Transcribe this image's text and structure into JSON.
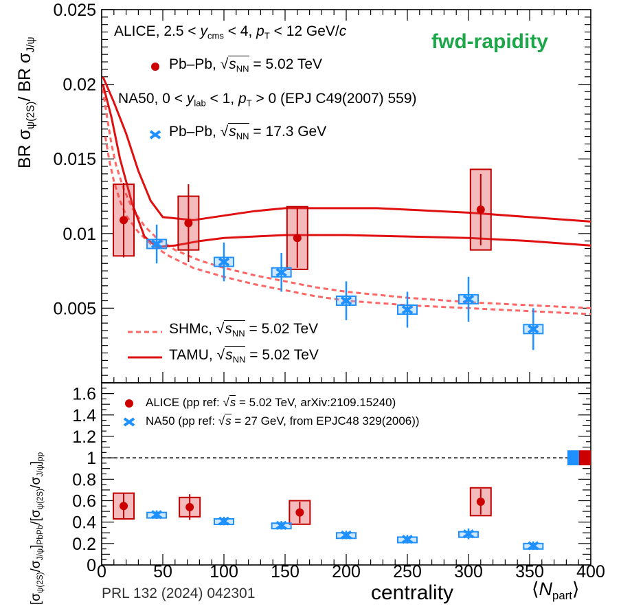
{
  "figure": {
    "fwd_label": "fwd-rapidity",
    "citation": "PRL 132 (2024) 042301",
    "centrality_label": "centrality"
  },
  "top_panel": {
    "ylabel_parts": [
      "BR σ",
      "ψ(2S)",
      "/ BR σ",
      "J/ψ"
    ],
    "ticks": [
      "0.025",
      "0.02",
      "0.015",
      "0.01",
      "0.005"
    ],
    "legend": {
      "alice_header": [
        "ALICE, 2.5 < ",
        "y",
        "cms",
        " < 4, ",
        "p",
        "T",
        " < 12 GeV/",
        "c"
      ],
      "alice_entry": [
        "Pb–Pb, ",
        "√",
        "s",
        "NN",
        " = 5.02 TeV"
      ],
      "na50_header": [
        "NA50, 0 < ",
        "y",
        "lab",
        " < 1, ",
        "p",
        "T",
        " > 0 (EPJ C49(2007) 559)"
      ],
      "na50_entry": [
        "Pb–Pb, ",
        "√",
        "s",
        "NN",
        " = 17.3 GeV"
      ],
      "shmc_entry": [
        "SHMc, ",
        "√",
        "s",
        "NN",
        " = 5.02 TeV"
      ],
      "tamu_entry": [
        "TAMU, ",
        "√",
        "s",
        "NN",
        " = 5.02 TeV"
      ]
    }
  },
  "bottom_panel": {
    "ylabel_parts": [
      "[σ",
      "ψ(2S)",
      "/σ",
      "J/ψ",
      "]",
      "PbPb",
      "/[σ",
      "ψ(2S)",
      "/σ",
      "J/ψ",
      "]",
      "pp"
    ],
    "ticks": [
      "1.6",
      "1.4",
      "1.2",
      "1",
      "0.8",
      "0.6",
      "0.4",
      "0.2",
      "0"
    ],
    "legend": {
      "alice_entry": [
        "ALICE (pp ref: ",
        "√",
        "s",
        " = 5.02 TeV, arXiv:2109.15240)"
      ],
      "na50_entry": [
        "NA50 (pp ref: ",
        "√",
        "s",
        " = 27 GeV, from EPJC48 329(2006))"
      ]
    }
  },
  "x_axis": {
    "ticks": [
      "0",
      "50",
      "100",
      "150",
      "200",
      "250",
      "300",
      "350",
      "400"
    ],
    "label_parts": [
      "⟨",
      "N",
      "part",
      "⟩"
    ]
  },
  "chart_data": [
    {
      "type": "scatter",
      "panel": "top",
      "xlim": [
        0,
        400
      ],
      "ylim": [
        0,
        0.025
      ],
      "series": [
        {
          "name": "Pb–Pb, √sNN = 5.02 TeV",
          "color": "#cc0000",
          "marker": "circle",
          "points": [
            {
              "x": 18,
              "y": 0.0109,
              "stat_err": 0.0025,
              "syst_box": 0.0024
            },
            {
              "x": 71,
              "y": 0.0107,
              "stat_err": 0.0026,
              "syst_box": 0.0018
            },
            {
              "x": 160,
              "y": 0.0097,
              "stat_err": 0.002,
              "syst_box": 0.0021
            },
            {
              "x": 310,
              "y": 0.0116,
              "stat_err": 0.0024,
              "syst_box": 0.0027
            }
          ]
        },
        {
          "name": "Pb–Pb, √sNN = 17.3 GeV",
          "color": "#1e90ff",
          "marker": "cross",
          "points": [
            {
              "x": 45,
              "y": 0.0093,
              "stat_err": 0.0013,
              "syst_box": 0.0003
            },
            {
              "x": 100,
              "y": 0.0081,
              "stat_err": 0.0013,
              "syst_box": 0.0003
            },
            {
              "x": 147,
              "y": 0.0074,
              "stat_err": 0.0013,
              "syst_box": 0.0003
            },
            {
              "x": 200,
              "y": 0.0055,
              "stat_err": 0.0013,
              "syst_box": 0.0003
            },
            {
              "x": 250,
              "y": 0.0049,
              "stat_err": 0.0012,
              "syst_box": 0.0003
            },
            {
              "x": 300,
              "y": 0.0056,
              "stat_err": 0.0015,
              "syst_box": 0.0003
            },
            {
              "x": 353,
              "y": 0.0036,
              "stat_err": 0.0014,
              "syst_box": 0.0003
            }
          ]
        }
      ],
      "bands": [
        {
          "name": "SHMc, √sNN = 5.02 TeV",
          "color": "#ff6666",
          "style": "dashed",
          "upper": [
            [
              1,
              0.0197
            ],
            [
              4,
              0.018
            ],
            [
              8,
              0.016
            ],
            [
              12,
              0.0145
            ],
            [
              18,
              0.013
            ],
            [
              25,
              0.0117
            ],
            [
              35,
              0.0105
            ],
            [
              45,
              0.0097
            ],
            [
              60,
              0.0089
            ],
            [
              80,
              0.0082
            ],
            [
              100,
              0.0077
            ],
            [
              125,
              0.0072
            ],
            [
              150,
              0.0068
            ],
            [
              175,
              0.0064
            ],
            [
              200,
              0.0061
            ],
            [
              250,
              0.0057
            ],
            [
              300,
              0.0054
            ],
            [
              350,
              0.0052
            ],
            [
              400,
              0.005
            ]
          ],
          "lower": [
            [
              3,
              0.0165
            ],
            [
              6,
              0.015
            ],
            [
              10,
              0.0135
            ],
            [
              15,
              0.0122
            ],
            [
              20,
              0.0112
            ],
            [
              30,
              0.0101
            ],
            [
              40,
              0.0093
            ],
            [
              55,
              0.0085
            ],
            [
              75,
              0.0077
            ],
            [
              100,
              0.0071
            ],
            [
              125,
              0.0066
            ],
            [
              150,
              0.0062
            ],
            [
              175,
              0.0058
            ],
            [
              200,
              0.0055
            ],
            [
              250,
              0.0052
            ],
            [
              300,
              0.005
            ],
            [
              350,
              0.0048
            ],
            [
              400,
              0.0046
            ]
          ]
        },
        {
          "name": "TAMU, √sNN = 5.02 TeV",
          "color": "#e01010",
          "style": "solid",
          "upper": [
            [
              1,
              0.0205
            ],
            [
              10,
              0.0188
            ],
            [
              20,
              0.0167
            ],
            [
              30,
              0.0142
            ],
            [
              40,
              0.0122
            ],
            [
              50,
              0.0111
            ],
            [
              75,
              0.0109
            ],
            [
              100,
              0.0112
            ],
            [
              125,
              0.0115
            ],
            [
              150,
              0.0117
            ],
            [
              175,
              0.0117
            ],
            [
              200,
              0.0117
            ],
            [
              225,
              0.0117
            ],
            [
              250,
              0.0116
            ],
            [
              300,
              0.0114
            ],
            [
              350,
              0.0111
            ],
            [
              400,
              0.0108
            ]
          ],
          "lower": [
            [
              1,
              0.02
            ],
            [
              8,
              0.0178
            ],
            [
              15,
              0.015
            ],
            [
              25,
              0.012
            ],
            [
              35,
              0.0098
            ],
            [
              45,
              0.0091
            ],
            [
              60,
              0.0092
            ],
            [
              80,
              0.0095
            ],
            [
              100,
              0.0097
            ],
            [
              125,
              0.0098
            ],
            [
              150,
              0.0099
            ],
            [
              175,
              0.0099
            ],
            [
              200,
              0.0099
            ],
            [
              250,
              0.0098
            ],
            [
              300,
              0.0097
            ],
            [
              350,
              0.0095
            ],
            [
              400,
              0.0092
            ]
          ]
        }
      ]
    },
    {
      "type": "scatter",
      "panel": "bottom",
      "xlim": [
        0,
        400
      ],
      "ylim": [
        0,
        1.7
      ],
      "reference_line": 1,
      "series": [
        {
          "name": "ALICE (pp ref: √s = 5.02 TeV, arXiv:2109.15240)",
          "color": "#cc0000",
          "marker": "circle",
          "points": [
            {
              "x": 18,
              "y": 0.55,
              "stat_err": 0.12,
              "syst_box": 0.12
            },
            {
              "x": 72,
              "y": 0.54,
              "stat_err": 0.12,
              "syst_box": 0.09
            },
            {
              "x": 162,
              "y": 0.49,
              "stat_err": 0.1,
              "syst_box": 0.11
            },
            {
              "x": 310,
              "y": 0.59,
              "stat_err": 0.12,
              "syst_box": 0.13
            }
          ]
        },
        {
          "name": "NA50 (pp ref: √s = 27 GeV, from EPJC48 329(2006))",
          "color": "#1e90ff",
          "marker": "cross",
          "points": [
            {
              "x": 45,
              "y": 0.47,
              "stat_err": 0.04,
              "syst_box": 0.02
            },
            {
              "x": 100,
              "y": 0.41,
              "stat_err": 0.04,
              "syst_box": 0.02
            },
            {
              "x": 147,
              "y": 0.37,
              "stat_err": 0.04,
              "syst_box": 0.02
            },
            {
              "x": 200,
              "y": 0.28,
              "stat_err": 0.04,
              "syst_box": 0.02
            },
            {
              "x": 250,
              "y": 0.24,
              "stat_err": 0.04,
              "syst_box": 0.02
            },
            {
              "x": 300,
              "y": 0.29,
              "stat_err": 0.05,
              "syst_box": 0.02
            },
            {
              "x": 353,
              "y": 0.18,
              "stat_err": 0.04,
              "syst_box": 0.02
            }
          ]
        }
      ],
      "normalization_boxes": [
        {
          "name": "NA50 normalization",
          "color": "#1e90ff",
          "y": 1,
          "half_height": 0.07
        },
        {
          "name": "ALICE normalization",
          "color": "#cc0000",
          "y": 1,
          "half_height": 0.07
        }
      ]
    }
  ]
}
